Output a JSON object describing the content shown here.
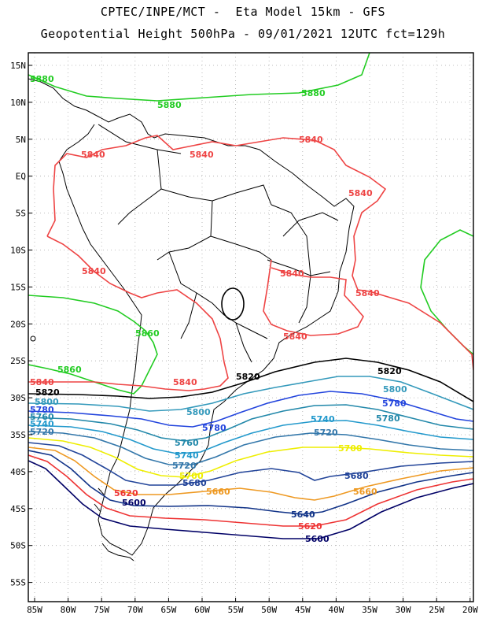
{
  "header": {
    "line1": "CPTEC/INPE/MCT -  Eta Model 15km - GFS",
    "line2": "Geopotential Height 500hPa - 09/01/2021 12UTC fct=129h"
  },
  "axes": {
    "lat_labels": [
      "15N",
      "10N",
      "5N",
      "EQ",
      "5S",
      "10S",
      "15S",
      "20S",
      "25S",
      "30S",
      "35S",
      "40S",
      "45S",
      "50S",
      "55S"
    ],
    "lon_labels": [
      "85W",
      "80W",
      "75W",
      "70W",
      "65W",
      "60W",
      "55W",
      "50W",
      "45W",
      "40W",
      "35W",
      "30W",
      "25W",
      "20W"
    ]
  },
  "contours": {
    "colors": {
      "5880": "#22cc22",
      "5860": "#22cc22",
      "5840": "#ee4444",
      "5820": "#000000",
      "5800": "#3399bb",
      "5780": "#2244dd",
      "5760": "#2288aa",
      "5740": "#2299cc",
      "5720": "#3377aa",
      "5700": "#eeee00",
      "5680": "#224499",
      "5660": "#ee9922",
      "5640": "#113388",
      "5620": "#ee3333",
      "5600": "#000066"
    },
    "labels": {
      "5880": "5880",
      "5860": "5860",
      "5840": "5840",
      "5820": "5820",
      "5800": "5800",
      "5780": "5780",
      "5760": "5760",
      "5740": "5740",
      "5720": "5720",
      "5700": "5700",
      "5680": "5680",
      "5660": "5660",
      "5640": "5640",
      "5620": "5620",
      "5600": "5600"
    }
  }
}
